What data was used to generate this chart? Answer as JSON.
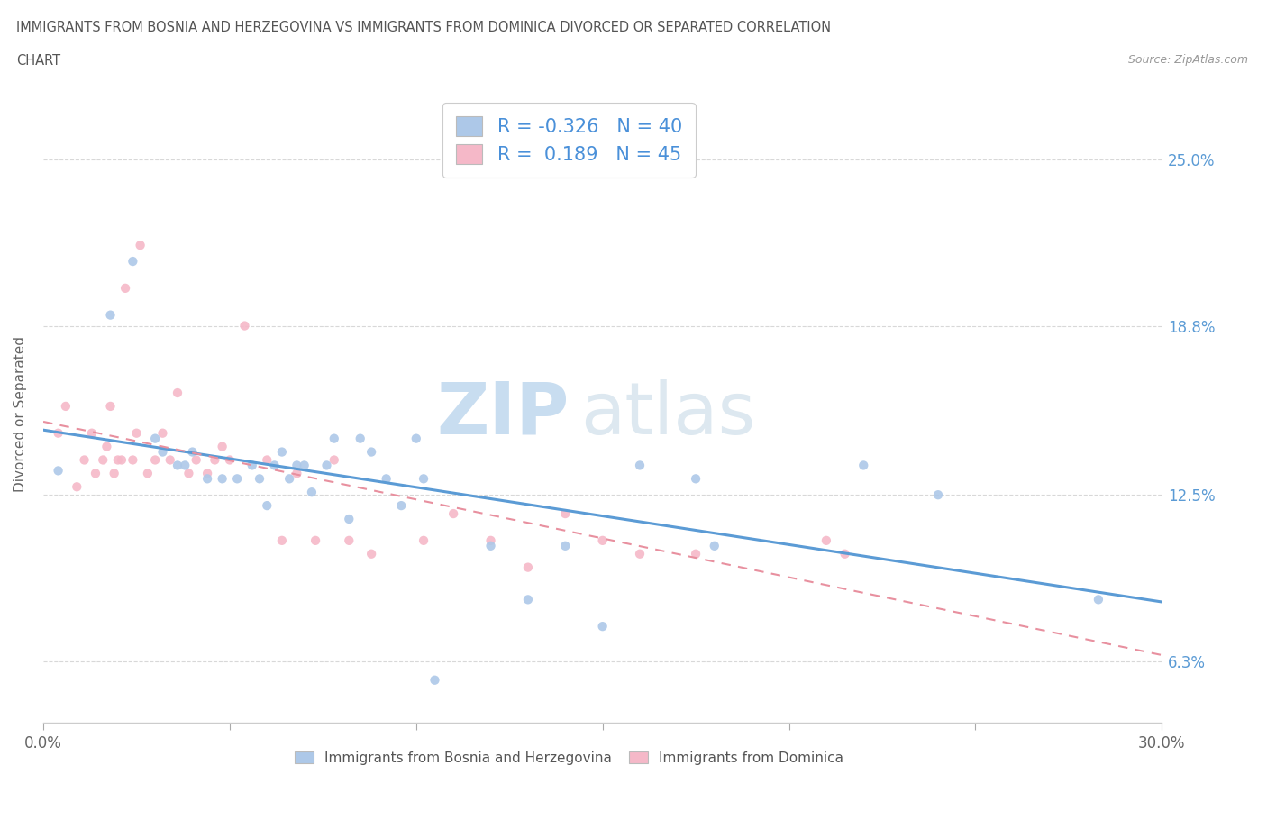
{
  "title_line1": "IMMIGRANTS FROM BOSNIA AND HERZEGOVINA VS IMMIGRANTS FROM DOMINICA DIVORCED OR SEPARATED CORRELATION",
  "title_line2": "CHART",
  "source": "Source: ZipAtlas.com",
  "ylabel": "Divorced or Separated",
  "xlim": [
    0.0,
    0.3
  ],
  "ylim": [
    0.04,
    0.27
  ],
  "xtick_positions": [
    0.0,
    0.05,
    0.1,
    0.15,
    0.2,
    0.25,
    0.3
  ],
  "xticklabels_show": [
    "0.0%",
    "",
    "",
    "",
    "",
    "",
    "30.0%"
  ],
  "ytick_positions": [
    0.063,
    0.125,
    0.188,
    0.25
  ],
  "ytick_labels": [
    "6.3%",
    "12.5%",
    "18.8%",
    "25.0%"
  ],
  "R_blue": -0.326,
  "N_blue": 40,
  "R_pink": 0.189,
  "N_pink": 45,
  "blue_color": "#adc8e8",
  "pink_color": "#f5b8c8",
  "blue_line_color": "#5b9bd5",
  "pink_line_color": "#e8909f",
  "legend_label_blue": "Immigrants from Bosnia and Herzegovina",
  "legend_label_pink": "Immigrants from Dominica",
  "blue_points_x": [
    0.004,
    0.018,
    0.024,
    0.03,
    0.032,
    0.036,
    0.038,
    0.04,
    0.044,
    0.048,
    0.052,
    0.056,
    0.058,
    0.06,
    0.062,
    0.064,
    0.066,
    0.068,
    0.07,
    0.072,
    0.076,
    0.078,
    0.082,
    0.085,
    0.088,
    0.092,
    0.096,
    0.1,
    0.102,
    0.105,
    0.12,
    0.13,
    0.14,
    0.15,
    0.16,
    0.175,
    0.18,
    0.22,
    0.24,
    0.283
  ],
  "blue_points_y": [
    0.134,
    0.192,
    0.212,
    0.146,
    0.141,
    0.136,
    0.136,
    0.141,
    0.131,
    0.131,
    0.131,
    0.136,
    0.131,
    0.121,
    0.136,
    0.141,
    0.131,
    0.136,
    0.136,
    0.126,
    0.136,
    0.146,
    0.116,
    0.146,
    0.141,
    0.131,
    0.121,
    0.146,
    0.131,
    0.056,
    0.106,
    0.086,
    0.106,
    0.076,
    0.136,
    0.131,
    0.106,
    0.136,
    0.125,
    0.086
  ],
  "pink_points_x": [
    0.004,
    0.006,
    0.009,
    0.011,
    0.013,
    0.014,
    0.016,
    0.017,
    0.018,
    0.019,
    0.02,
    0.021,
    0.022,
    0.024,
    0.025,
    0.026,
    0.028,
    0.03,
    0.032,
    0.034,
    0.036,
    0.039,
    0.041,
    0.044,
    0.046,
    0.048,
    0.05,
    0.054,
    0.06,
    0.064,
    0.068,
    0.073,
    0.078,
    0.082,
    0.088,
    0.102,
    0.11,
    0.12,
    0.13,
    0.14,
    0.15,
    0.16,
    0.175,
    0.21,
    0.215
  ],
  "pink_points_y": [
    0.148,
    0.158,
    0.128,
    0.138,
    0.148,
    0.133,
    0.138,
    0.143,
    0.158,
    0.133,
    0.138,
    0.138,
    0.202,
    0.138,
    0.148,
    0.218,
    0.133,
    0.138,
    0.148,
    0.138,
    0.163,
    0.133,
    0.138,
    0.133,
    0.138,
    0.143,
    0.138,
    0.188,
    0.138,
    0.108,
    0.133,
    0.108,
    0.138,
    0.108,
    0.103,
    0.108,
    0.118,
    0.108,
    0.098,
    0.118,
    0.108,
    0.103,
    0.103,
    0.108,
    0.103
  ],
  "watermark_zip": "ZIP",
  "watermark_atlas": "atlas",
  "background_color": "#ffffff",
  "grid_color": "#d8d8d8",
  "spine_color": "#cccccc"
}
